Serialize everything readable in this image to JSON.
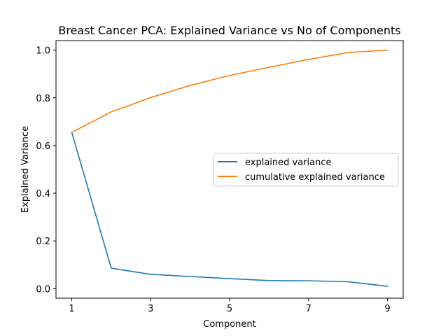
{
  "chart_data": {
    "type": "line",
    "title": "Breast Cancer PCA: Explained Variance vs No of Components",
    "xlabel": "Component",
    "ylabel": "Explained Variance",
    "x": [
      1,
      2,
      3,
      4,
      5,
      6,
      7,
      8,
      9
    ],
    "xlim": [
      0.6,
      9.4
    ],
    "ylim": [
      -0.04,
      1.04
    ],
    "xticks": [
      1,
      3,
      5,
      7,
      9
    ],
    "yticks": [
      0.0,
      0.2,
      0.4,
      0.6,
      0.8,
      1.0
    ],
    "ytick_labels": [
      "0.0",
      "0.2",
      "0.4",
      "0.6",
      "0.8",
      "1.0"
    ],
    "grid": false,
    "legend_position": "center-right",
    "series": [
      {
        "name": "explained variance",
        "color": "#1f77b4",
        "values": [
          0.655,
          0.086,
          0.06,
          0.051,
          0.042,
          0.034,
          0.033,
          0.029,
          0.01
        ]
      },
      {
        "name": "cumulative explained variance",
        "color": "#ff7f0e",
        "values": [
          0.655,
          0.741,
          0.801,
          0.852,
          0.894,
          0.928,
          0.961,
          0.99,
          1.0
        ]
      }
    ]
  }
}
